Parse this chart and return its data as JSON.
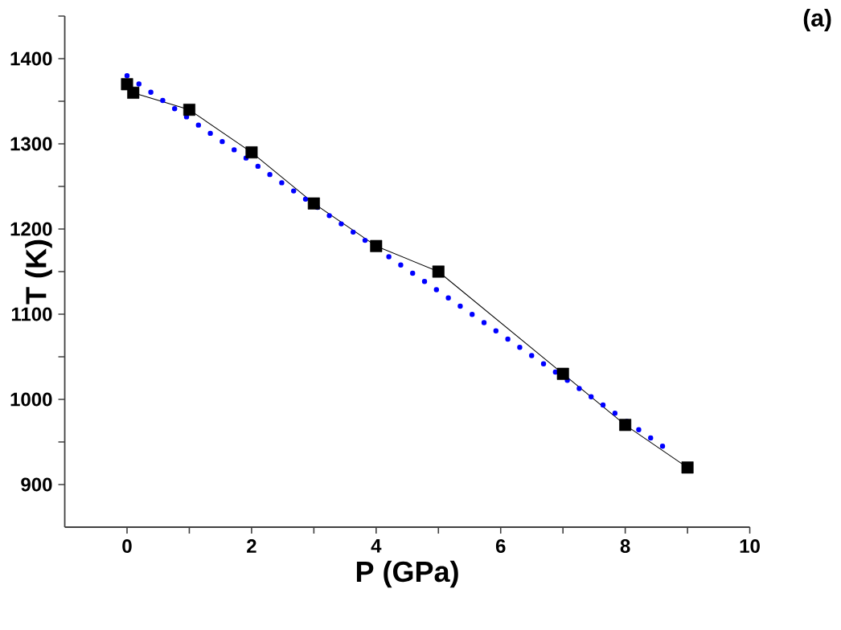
{
  "chart_data": {
    "type": "line",
    "xlabel": "P (GPa)",
    "ylabel": "T (K)",
    "annotations": [
      "(a)"
    ],
    "xlim": [
      -1,
      10
    ],
    "ylim": [
      850,
      1450
    ],
    "xticks": [
      0,
      {
        "value": 1,
        "label": null
      },
      2,
      {
        "value": 3,
        "label": null
      },
      4,
      {
        "value": 5,
        "label": null
      },
      6,
      {
        "value": 7,
        "label": null
      },
      8,
      {
        "value": 9,
        "label": null
      },
      10
    ],
    "yticks": [
      900,
      {
        "value": 950,
        "label": null
      },
      1000,
      {
        "value": 1050,
        "label": null
      },
      1100,
      {
        "value": 1150,
        "label": null
      },
      1200,
      {
        "value": 1250,
        "label": null
      },
      1300,
      {
        "value": 1350,
        "label": null
      },
      1400,
      {
        "value": 1450,
        "label": null
      }
    ],
    "series": [
      {
        "x": [
          0,
          0.1,
          1,
          2,
          3,
          4,
          5,
          7,
          8,
          9
        ],
        "values": [
          1370,
          1360,
          1340,
          1290,
          1230,
          1180,
          1150,
          1030,
          970,
          920
        ],
        "color": "#000000",
        "marker": "square",
        "line_style": "solid"
      },
      {
        "x": [
          0,
          8.7
        ],
        "values": [
          1380,
          940
        ],
        "color": "#0000ff",
        "marker": "none",
        "line_style": "dotted"
      }
    ]
  }
}
